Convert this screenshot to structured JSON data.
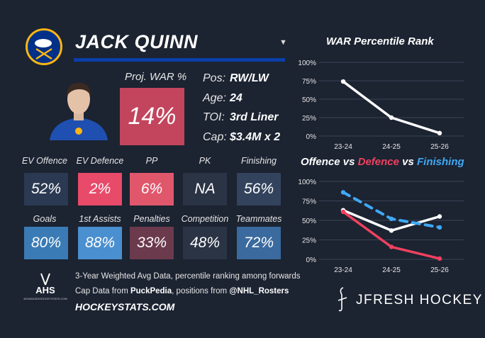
{
  "player": {
    "name": "JACK QUINN",
    "proj_war_label": "Proj. WAR %",
    "proj_war_value": "14%",
    "info": [
      {
        "key": "Pos:",
        "value": "RW/LW"
      },
      {
        "key": "Age:",
        "value": "24"
      },
      {
        "key": "TOI:",
        "value": "3rd Liner"
      },
      {
        "key": "Cap:",
        "value": "$3.4M x 2"
      }
    ]
  },
  "tiles": [
    {
      "label": "EV Offence",
      "value": "52%",
      "color": "#2b3a52"
    },
    {
      "label": "EV Defence",
      "value": "2%",
      "color": "#e84a6a"
    },
    {
      "label": "PP",
      "value": "6%",
      "color": "#e0576c"
    },
    {
      "label": "PK",
      "value": "NA",
      "color": "#2b3445"
    },
    {
      "label": "Finishing",
      "value": "56%",
      "color": "#33435d"
    },
    {
      "label": "Goals",
      "value": "80%",
      "color": "#3a7bb5"
    },
    {
      "label": "1st Assists",
      "value": "88%",
      "color": "#4a8fcf"
    },
    {
      "label": "Penalties",
      "value": "33%",
      "color": "#6b3a4c"
    },
    {
      "label": "Competition",
      "value": "48%",
      "color": "#2b3445"
    },
    {
      "label": "Teammates",
      "value": "72%",
      "color": "#3a6a9e"
    }
  ],
  "footer": {
    "ahs_logo": "AHS",
    "ahs_sub": "ADVANCEDHOCKEYSTATS.COM",
    "line1": "3-Year Weighted Avg Data, percentile ranking among forwards",
    "line2_pre": "Cap Data from ",
    "line2_b1": "PuckPedia",
    "line2_mid": ", positions from ",
    "line2_b2": "@NHL_Rosters",
    "site": "HOCKEYSTATS.COM",
    "brand": "JFRESH HOCKEY"
  },
  "chart_data": [
    {
      "type": "line",
      "title": "WAR Percentile Rank",
      "categories": [
        "23-24",
        "24-25",
        "25-26"
      ],
      "ylim": [
        0,
        100
      ],
      "yticks": [
        "0%",
        "25%",
        "50%",
        "75%",
        "100%"
      ],
      "grid": true,
      "series": [
        {
          "values": [
            74,
            25,
            4
          ],
          "color": "#ffffff",
          "dash": false
        }
      ]
    },
    {
      "type": "line",
      "title_parts": [
        {
          "text": "Offence",
          "color": "#ffffff"
        },
        {
          "text": " vs ",
          "color": "#ffffff"
        },
        {
          "text": "Defence",
          "color": "#f0415f"
        },
        {
          "text": " vs ",
          "color": "#ffffff"
        },
        {
          "text": "Finishing",
          "color": "#3fa9f5"
        }
      ],
      "categories": [
        "23-24",
        "24-25",
        "25-26"
      ],
      "ylim": [
        0,
        100
      ],
      "yticks": [
        "0%",
        "25%",
        "50%",
        "75%",
        "100%"
      ],
      "grid": true,
      "series": [
        {
          "name": "Offence",
          "values": [
            63,
            37,
            55
          ],
          "color": "#ffffff",
          "dash": false
        },
        {
          "name": "Defence",
          "values": [
            61,
            16,
            1
          ],
          "color": "#f0415f",
          "dash": false
        },
        {
          "name": "Finishing",
          "values": [
            86,
            52,
            41
          ],
          "color": "#3fa9f5",
          "dash": true
        }
      ]
    }
  ]
}
